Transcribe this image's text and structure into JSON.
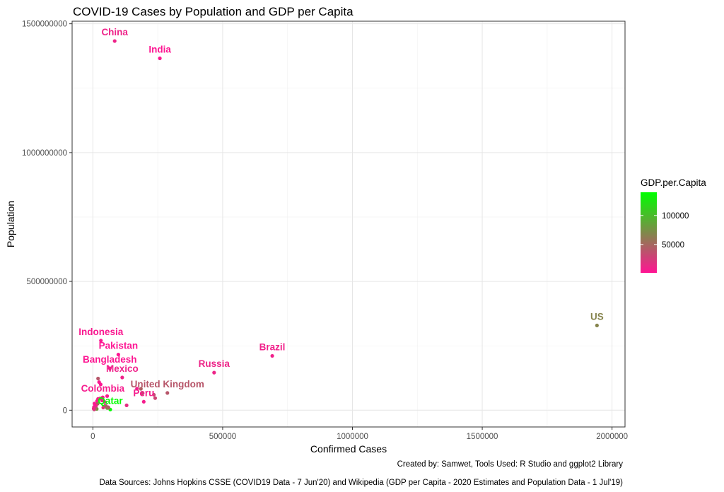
{
  "chart_data": {
    "type": "scatter",
    "title": "COVID-19 Cases by Population and GDP per Capita",
    "xlabel": "Confirmed Cases",
    "ylabel": "Population",
    "xlim": [
      -80000,
      2050000
    ],
    "ylim": [
      -65000000,
      1510000000
    ],
    "x_ticks": [
      0,
      500000,
      1000000,
      1500000,
      2000000
    ],
    "x_tick_labels": [
      "0",
      "500000",
      "1000000",
      "1500000",
      "2000000"
    ],
    "y_ticks": [
      0,
      500000000,
      1000000000,
      1500000000
    ],
    "y_tick_labels": [
      "0",
      "500000000",
      "1000000000",
      "1500000000"
    ],
    "grid": true,
    "color_scale": {
      "title": "GDP.per.Capita",
      "min": 1000,
      "max": 140000,
      "low_color": "#ff1493",
      "high_color": "#00ff00",
      "ticks": [
        50000,
        100000
      ],
      "tick_labels": [
        "50000",
        "100000"
      ],
      "legend_position": "right"
    },
    "points": [
      {
        "label": "China",
        "x": 84000,
        "y": 1433000000,
        "gdp": 10000
      },
      {
        "label": "India",
        "x": 258000,
        "y": 1366000000,
        "gdp": 2100
      },
      {
        "label": "US",
        "x": 1942000,
        "y": 329000000,
        "gdp": 67000
      },
      {
        "label": "Brazil",
        "x": 691000,
        "y": 211000000,
        "gdp": 8700
      },
      {
        "label": "Russia",
        "x": 467000,
        "y": 146000000,
        "gdp": 11000
      },
      {
        "label": "Indonesia",
        "x": 31000,
        "y": 270000000,
        "gdp": 4000
      },
      {
        "label": "Pakistan",
        "x": 98000,
        "y": 216000000,
        "gdp": 1300
      },
      {
        "label": "Bangladesh",
        "x": 65000,
        "y": 163000000,
        "gdp": 1900
      },
      {
        "label": "Mexico",
        "x": 113000,
        "y": 127000000,
        "gdp": 9000
      },
      {
        "label": "United Kingdom",
        "x": 287000,
        "y": 67000000,
        "gdp": 40000
      },
      {
        "label": "Peru",
        "x": 196000,
        "y": 33000000,
        "gdp": 6500
      },
      {
        "label": "Colombia",
        "x": 38000,
        "y": 50000000,
        "gdp": 6000
      },
      {
        "label": "Qatar",
        "x": 67000,
        "y": 2800000,
        "gdp": 138000
      },
      {
        "label": "",
        "x": 240000,
        "y": 47000000,
        "gdp": 29000
      },
      {
        "label": "",
        "x": 235000,
        "y": 60000000,
        "gdp": 33000
      },
      {
        "label": "",
        "x": 190000,
        "y": 65000000,
        "gdp": 42000
      },
      {
        "label": "",
        "x": 185000,
        "y": 83000000,
        "gdp": 46000
      },
      {
        "label": "",
        "x": 170000,
        "y": 84000000,
        "gdp": 8000
      },
      {
        "label": "",
        "x": 130000,
        "y": 19000000,
        "gdp": 15000
      },
      {
        "label": "",
        "x": 55000,
        "y": 55000000,
        "gdp": 6500
      },
      {
        "label": "",
        "x": 30000,
        "y": 100000000,
        "gdp": 2000
      },
      {
        "label": "",
        "x": 24000,
        "y": 109000000,
        "gdp": 3500
      },
      {
        "label": "",
        "x": 20000,
        "y": 123000000,
        "gdp": 40000
      },
      {
        "label": "",
        "x": 45000,
        "y": 32000000,
        "gdp": 8000
      },
      {
        "label": "",
        "x": 50000,
        "y": 17000000,
        "gdp": 7000
      },
      {
        "label": "",
        "x": 60000,
        "y": 9800000,
        "gdp": 24000
      },
      {
        "label": "",
        "x": 55000,
        "y": 8500000,
        "gdp": 83000
      },
      {
        "label": "",
        "x": 47000,
        "y": 17000000,
        "gdp": 52000
      },
      {
        "label": "",
        "x": 59000,
        "y": 11500000,
        "gdp": 47000
      },
      {
        "label": "",
        "x": 40000,
        "y": 10300000,
        "gdp": 23000
      },
      {
        "label": "",
        "x": 35000,
        "y": 38000000,
        "gdp": 15000
      },
      {
        "label": "",
        "x": 28000,
        "y": 46000000,
        "gdp": 30000
      },
      {
        "label": "",
        "x": 20000,
        "y": 44000000,
        "gdp": 10000
      },
      {
        "label": "",
        "x": 16000,
        "y": 36000000,
        "gdp": 3300
      },
      {
        "label": "",
        "x": 18000,
        "y": 25000000,
        "gdp": 55000
      },
      {
        "label": "",
        "x": 15000,
        "y": 5000000,
        "gdp": 80000
      },
      {
        "label": "",
        "x": 12000,
        "y": 17000000,
        "gdp": 5000
      },
      {
        "label": "",
        "x": 10000,
        "y": 10000000,
        "gdp": 25000
      },
      {
        "label": "",
        "x": 9000,
        "y": 5800000,
        "gdp": 60000
      },
      {
        "label": "",
        "x": 8000,
        "y": 21000000,
        "gdp": 1500
      },
      {
        "label": "",
        "x": 6000,
        "y": 26000000,
        "gdp": 3500
      },
      {
        "label": "",
        "x": 5000,
        "y": 3000000,
        "gdp": 32000
      },
      {
        "label": "",
        "x": 4000,
        "y": 12000000,
        "gdp": 9000
      },
      {
        "label": "",
        "x": 3000,
        "y": 6000000,
        "gdp": 12000
      }
    ]
  },
  "caption": {
    "credit": "Created by: Samwet, Tools Used: R Studio and ggplot2 Library",
    "sources": "Data Sources: Johns Hopkins CSSE (COVID19 Data - 7 Jun'20) and Wikipedia (GDP per Capita - 2020 Estimates and Population Data - 1 Jul'19)"
  }
}
